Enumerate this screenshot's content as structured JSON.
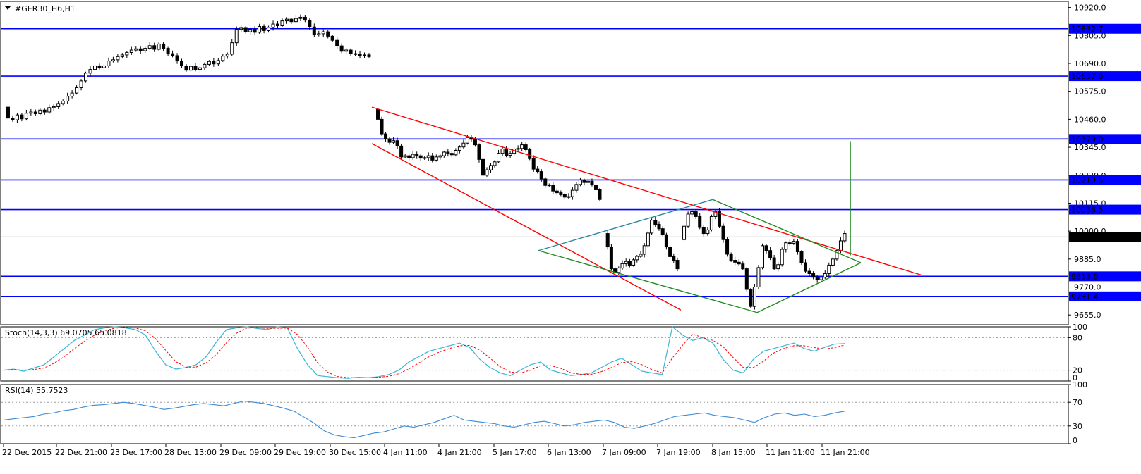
{
  "header": {
    "title": "#GER30_H6,H1",
    "menu_icon": "triangle-down-icon"
  },
  "colors": {
    "bull": "#000000",
    "bear": "#000000",
    "hline": "#0000ff",
    "trend": "#ff0000",
    "diamond": "#228b22",
    "diamond_top": "#2a8aa0",
    "spike": "#228b22",
    "stoch_main": "#3ab7d3",
    "stoch_signal": "#ff0000",
    "rsi": "#3a8ad6",
    "current": "#000000"
  },
  "main": {
    "price_labels": [
      "10920.0",
      "10805.0",
      "10690.0",
      "10575.0",
      "10460.0",
      "10345.0",
      "10230.0",
      "10115.0",
      "10000.0",
      "9885.0",
      "9770.0",
      "9655.0"
    ],
    "level_labels": [
      "10832.7",
      "10637.6",
      "10379.0",
      "10210.5",
      "10088.5",
      "9813.9",
      "9731.4"
    ],
    "current_label": "9976.5"
  },
  "stoch": {
    "title": "Stoch(14,3,3) 69.0705 65.0818",
    "labels": [
      "100",
      "80",
      "20",
      "0"
    ],
    "levels": [
      80,
      20
    ]
  },
  "rsi": {
    "title": "RSI(14) 55.7523",
    "labels": [
      "100",
      "70",
      "30",
      "0"
    ],
    "levels": [
      70,
      30
    ]
  },
  "x_labels": [
    "22 Dec 2015",
    "22 Dec 21:00",
    "23 Dec 17:00",
    "28 Dec 13:00",
    "29 Dec 09:00",
    "29 Dec 19:00",
    "30 Dec 15:00",
    "4 Jan 11:00",
    "4 Jan 21:00",
    "5 Jan 17:00",
    "6 Jan 13:00",
    "7 Jan 09:00",
    "7 Jan 19:00",
    "8 Jan 15:00",
    "11 Jan 11:00",
    "11 Jan 21:00"
  ],
  "chart_data": {
    "type": "candlestick",
    "title": "#GER30_H6,H1",
    "ylim": [
      9615,
      10945
    ],
    "horizontal_levels": [
      10832.7,
      10637.6,
      10379.0,
      10210.5,
      10088.5,
      9813.9,
      9731.4
    ],
    "current_price": 9976.5,
    "trendlines": [
      {
        "name": "channel-top",
        "points": [
          [
            527,
            10510
          ],
          [
            1305,
            9820
          ]
        ]
      },
      {
        "name": "channel-bottom",
        "points": [
          [
            527,
            10360
          ],
          [
            965,
            9675
          ]
        ]
      },
      {
        "name": "diamond-top-left",
        "points": [
          [
            763,
            9920
          ],
          [
            1010,
            10130
          ]
        ]
      },
      {
        "name": "diamond-top-right",
        "points": [
          [
            1010,
            10130
          ],
          [
            1220,
            9870
          ]
        ]
      },
      {
        "name": "diamond-bottom-left",
        "points": [
          [
            763,
            9920
          ],
          [
            1073,
            9665
          ]
        ]
      },
      {
        "name": "diamond-bottom-right",
        "points": [
          [
            1073,
            9665
          ],
          [
            1220,
            9870
          ]
        ]
      },
      {
        "name": "spike",
        "points": [
          [
            1205,
            9900
          ],
          [
            1205,
            10370
          ]
        ]
      }
    ],
    "segments": [
      {
        "x0": 5,
        "x1": 523,
        "values": [
          10510,
          10465,
          10458,
          10478,
          10462,
          10485,
          10490,
          10483,
          10498,
          10490,
          10508,
          10512,
          10525,
          10535,
          10555,
          10568,
          10590,
          10618,
          10650,
          10665,
          10680,
          10672,
          10680,
          10700,
          10705,
          10718,
          10725,
          10735,
          10745,
          10750,
          10742,
          10752,
          10763,
          10748,
          10770,
          10752,
          10730,
          10722,
          10700,
          10680,
          10662,
          10678,
          10665,
          10672,
          10686,
          10698,
          10688,
          10702,
          10720,
          10728,
          10775,
          10830,
          10835,
          10820,
          10830,
          10818,
          10842,
          10825,
          10838,
          10852,
          10845,
          10865,
          10872,
          10862,
          10875,
          10880,
          10868,
          10840,
          10808,
          10812,
          10820,
          10802,
          10785,
          10762,
          10740,
          10745,
          10730,
          10728,
          10722,
          10725,
          10718
        ]
      },
      {
        "x0": 530,
        "x1": 850,
        "values": [
          10500,
          10460,
          10400,
          10380,
          10365,
          10372,
          10350,
          10305,
          10310,
          10302,
          10316,
          10310,
          10300,
          10302,
          10310,
          10292,
          10305,
          10310,
          10325,
          10320,
          10314,
          10332,
          10346,
          10362,
          10385,
          10378,
          10355,
          10295,
          10230,
          10252,
          10270,
          10285,
          10320,
          10338,
          10312,
          10320,
          10338,
          10340,
          10355,
          10335,
          10298,
          10255,
          10245,
          10215,
          10188,
          10190,
          10165,
          10158,
          10150,
          10140,
          10142,
          10168,
          10192,
          10210,
          10200,
          10205,
          10190,
          10170,
          10130
        ]
      },
      {
        "x0": 856,
        "x1": 960,
        "values": [
          9990,
          9935,
          9845,
          9830,
          9848,
          9866,
          9875,
          9860,
          9882,
          9896,
          9905,
          9940,
          9992,
          10045,
          10028,
          10010,
          9985,
          9935,
          9895,
          9880,
          9845
        ]
      },
      {
        "x0": 964,
        "x1": 1197,
        "values": [
          9965,
          10020,
          10070,
          10080,
          10060,
          10015,
          9990,
          10005,
          10060,
          10080,
          10020,
          9965,
          9905,
          9880,
          9872,
          9865,
          9845,
          9760,
          9690,
          9770,
          9850,
          9940,
          9920,
          9890,
          9845,
          9862,
          9925,
          9952,
          9950,
          9958,
          9915,
          9870,
          9835,
          9825,
          9810,
          9800,
          9810,
          9825,
          9860,
          9885,
          9920,
          9960,
          9990
        ]
      }
    ]
  }
}
